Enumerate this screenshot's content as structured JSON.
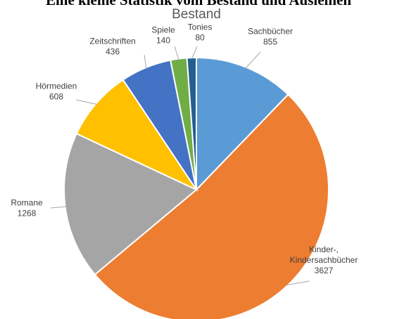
{
  "heading": "Eine kleine Statistik vom Bestand und Ausleihen",
  "chart_data": {
    "type": "pie",
    "title": "Bestand",
    "slices": [
      {
        "label_lines": [
          "Sachbücher"
        ],
        "value": 855,
        "color": "#5B9BD5"
      },
      {
        "label_lines": [
          "Kinder-,",
          "Kindersachbücher"
        ],
        "value": 3627,
        "color": "#ED7D31"
      },
      {
        "label_lines": [
          "Romane"
        ],
        "value": 1268,
        "color": "#A5A5A5"
      },
      {
        "label_lines": [
          "Hörmedien"
        ],
        "value": 608,
        "color": "#FFC000"
      },
      {
        "label_lines": [
          "Zeitschriften"
        ],
        "value": 436,
        "color": "#4472C4"
      },
      {
        "label_lines": [
          "Spiele"
        ],
        "value": 140,
        "color": "#70AD47"
      },
      {
        "label_lines": [
          "Tonies"
        ],
        "value": 80,
        "color": "#255E91"
      }
    ],
    "legend": "none",
    "data_labels": "outside with leader lines"
  }
}
